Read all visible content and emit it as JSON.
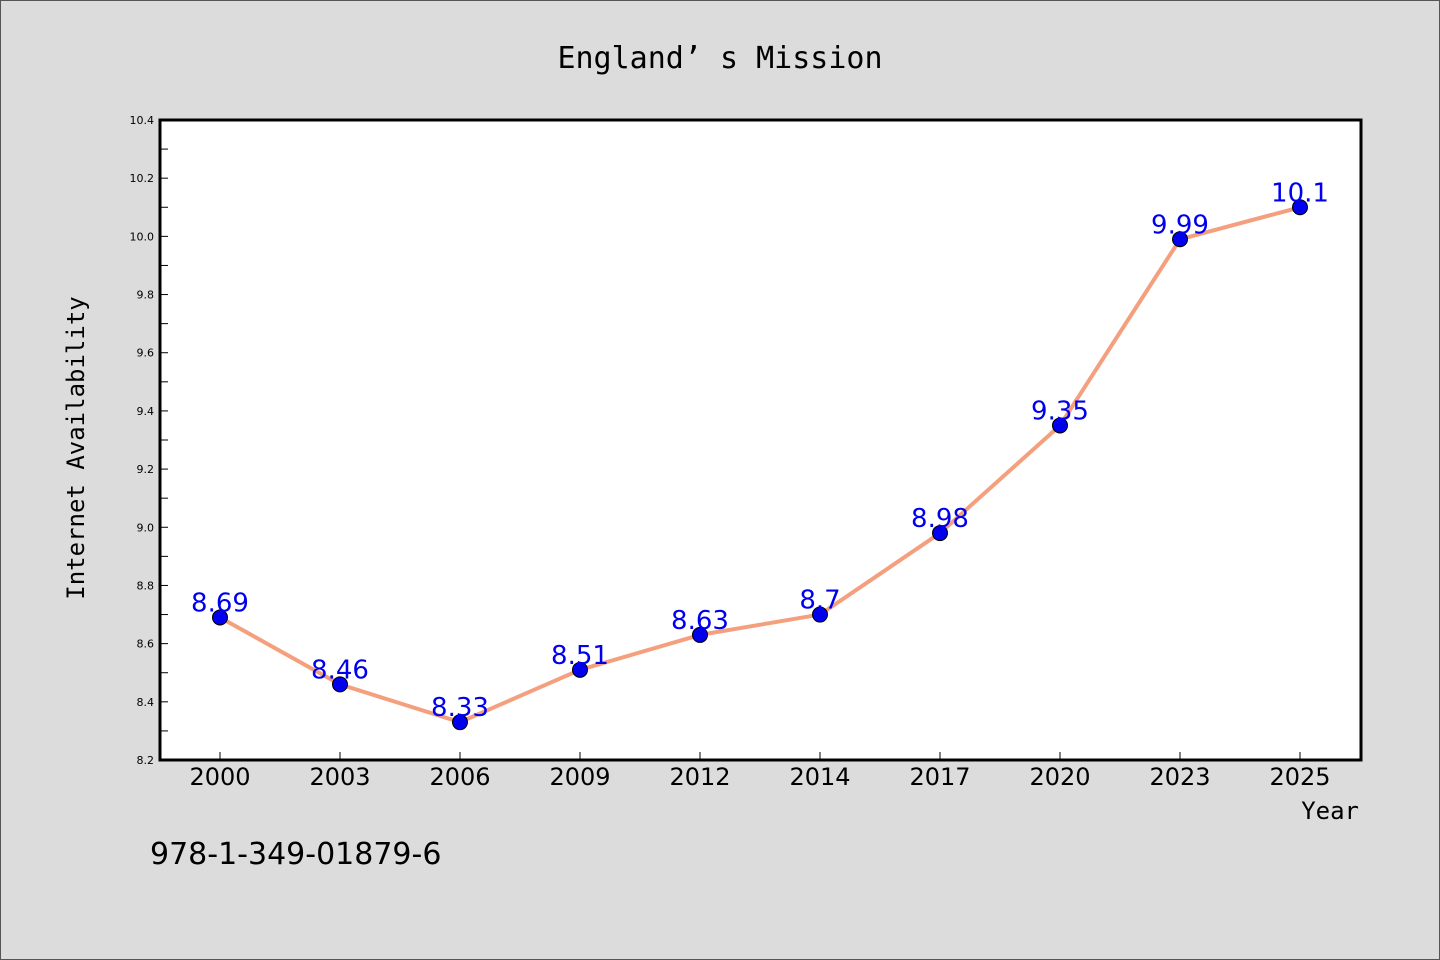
{
  "chart_data": {
    "type": "line",
    "title": "England’ s Mission",
    "xlabel": "Year",
    "ylabel": "Internet Availability",
    "categories": [
      "2000",
      "2003",
      "2006",
      "2009",
      "2012",
      "2014",
      "2017",
      "2020",
      "2023",
      "2025"
    ],
    "series": [
      {
        "values": [
          8.69,
          8.46,
          8.33,
          8.51,
          8.63,
          8.7,
          8.98,
          9.35,
          9.99,
          10.1
        ],
        "labels": [
          "8.69",
          "8.46",
          "8.33",
          "8.51",
          "8.63",
          "8.7",
          "8.98",
          "9.35",
          "9.99",
          "10.1"
        ],
        "line_color": "#f4a07e",
        "marker_color": "#0000ee",
        "label_color": "#0000ee"
      }
    ],
    "ylim": [
      8.2,
      10.4
    ],
    "yticks": [
      "8.2",
      "8.4",
      "8.6",
      "8.8",
      "9.0",
      "9.2",
      "9.4",
      "9.6",
      "9.8",
      "10.0",
      "10.2",
      "10.4"
    ],
    "grid": false,
    "legend": "none"
  },
  "footer": {
    "isbn": "978-1-349-01879-6"
  }
}
